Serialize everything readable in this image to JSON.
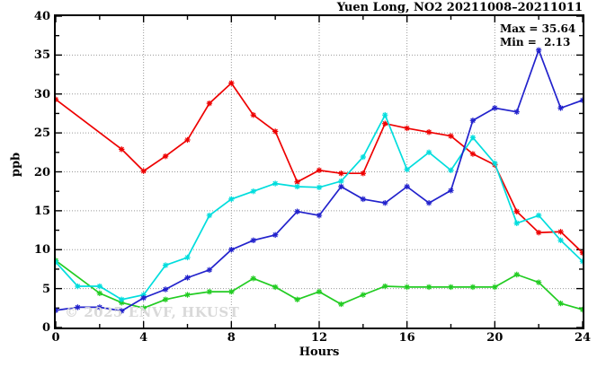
{
  "title": "Yuen Long, NO2 20211008–20211011",
  "annotations": {
    "max": "Max = 35.64",
    "min": "Min =  2.13"
  },
  "watermark": "© 2025 ENVF, HKUST",
  "colors": {
    "axis": "#000000",
    "grid": "#999999",
    "background": "#ffffff",
    "watermark": "#d9d9d9"
  },
  "chart_data": {
    "type": "line",
    "title": "Yuen Long, NO2 20211008–20211011",
    "xlabel": "Hours",
    "ylabel": "ppb",
    "xlim": [
      0,
      24
    ],
    "ylim": [
      0,
      40
    ],
    "x_major_ticks": [
      0,
      4,
      8,
      12,
      16,
      20,
      24
    ],
    "x_minor_step": 2,
    "y_major_ticks": [
      0,
      5,
      10,
      15,
      20,
      25,
      30,
      35,
      40
    ],
    "y_minor_step": 2.5,
    "grid": true,
    "legend_position": "none",
    "stats": {
      "max": 35.64,
      "min": 2.13
    },
    "series": [
      {
        "name": "red-line",
        "color": "#ee0000",
        "x": [
          0,
          3,
          4,
          5,
          6,
          7,
          8,
          9,
          10,
          11,
          12,
          13,
          14,
          15,
          16,
          17,
          18,
          19,
          20,
          21,
          22,
          23,
          24
        ],
        "y": [
          29.3,
          22.9,
          20.1,
          22.0,
          24.1,
          28.8,
          31.4,
          27.3,
          25.2,
          18.7,
          20.2,
          19.8,
          19.8,
          26.2,
          25.6,
          25.1,
          24.6,
          22.3,
          20.9,
          14.9,
          12.2,
          12.3,
          9.6
        ]
      },
      {
        "name": "green-line",
        "color": "#22cc22",
        "x": [
          0,
          2,
          3,
          4,
          5,
          6,
          7,
          8,
          9,
          10,
          11,
          12,
          13,
          14,
          15,
          16,
          17,
          18,
          19,
          20,
          21,
          22,
          23,
          24
        ],
        "y": [
          8.6,
          4.4,
          3.2,
          2.5,
          3.6,
          4.2,
          4.6,
          4.6,
          6.3,
          5.2,
          3.6,
          4.6,
          3.0,
          4.2,
          5.3,
          5.2,
          5.2,
          5.2,
          5.2,
          5.2,
          6.8,
          5.8,
          3.1,
          2.3
        ]
      },
      {
        "name": "cyan-line",
        "color": "#00dddd",
        "x": [
          0,
          1,
          2,
          3,
          4,
          5,
          6,
          7,
          8,
          9,
          10,
          11,
          12,
          13,
          14,
          15,
          16,
          17,
          18,
          19,
          20,
          21,
          22,
          23,
          24
        ],
        "y": [
          8.4,
          5.3,
          5.3,
          3.6,
          4.2,
          8.0,
          9.0,
          14.4,
          16.5,
          17.5,
          18.5,
          18.1,
          18.0,
          18.8,
          21.9,
          27.3,
          20.3,
          22.5,
          20.2,
          24.4,
          21.1,
          13.4,
          14.4,
          11.2,
          8.5
        ]
      },
      {
        "name": "blue-line",
        "color": "#2222cc",
        "x": [
          0,
          1,
          2,
          3,
          4,
          5,
          6,
          7,
          8,
          9,
          10,
          11,
          12,
          13,
          14,
          15,
          16,
          17,
          18,
          19,
          20,
          21,
          22,
          23,
          24
        ],
        "y": [
          2.2,
          2.6,
          2.6,
          2.13,
          3.8,
          4.9,
          6.4,
          7.4,
          10.0,
          11.2,
          11.9,
          14.9,
          14.4,
          18.1,
          16.5,
          16.0,
          18.1,
          16.0,
          17.6,
          26.6,
          28.2,
          27.7,
          35.64,
          28.2,
          29.2
        ]
      }
    ]
  }
}
